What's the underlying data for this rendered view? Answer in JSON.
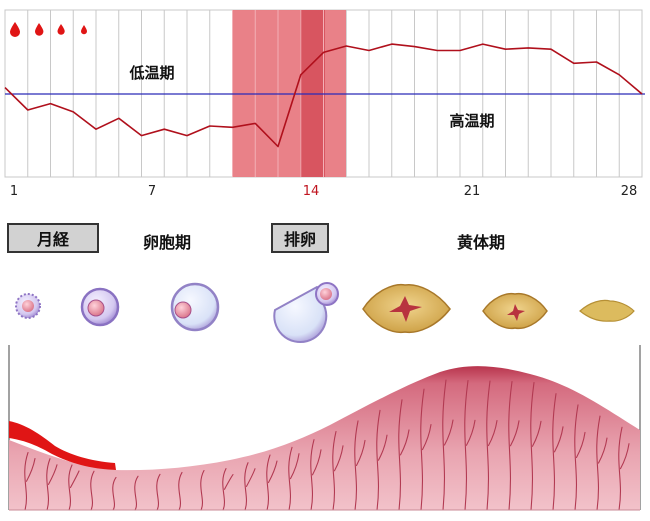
{
  "chart_data": {
    "type": "line",
    "x_ticks": [
      {
        "label": "1",
        "highlight": false
      },
      {
        "label": "7",
        "highlight": false
      },
      {
        "label": "14",
        "highlight": true
      },
      {
        "label": "21",
        "highlight": false
      },
      {
        "label": "28",
        "highlight": false
      }
    ],
    "annotations": {
      "low_label": "低温期",
      "high_label": "高温期"
    },
    "series": [
      {
        "values": [
          0.1,
          -0.25,
          -0.15,
          -0.28,
          -0.55,
          -0.38,
          -0.65,
          -0.55,
          -0.65,
          -0.5,
          -0.52,
          -0.46,
          -0.82,
          0.3,
          0.65,
          0.75,
          0.68,
          0.78,
          0.74,
          0.68,
          0.68,
          0.78,
          0.7,
          0.72,
          0.7,
          0.48,
          0.5,
          0.3,
          0.0
        ]
      }
    ],
    "baseline": 0,
    "highlight_colors": {
      "band": "#e87a82",
      "ovulation": "#d85560",
      "line": "#b0101c",
      "baseline": "#2a2ab8"
    }
  },
  "phases": {
    "menstruation": "月経",
    "follicular": "卵胞期",
    "ovulation": "排卵",
    "luteal": "黄体期"
  },
  "colors": {
    "blood": "#e01515",
    "uterine_lining": "#c24a5e",
    "corpus_luteum": "#d7b25a",
    "follicle": "#b9a6e0"
  }
}
